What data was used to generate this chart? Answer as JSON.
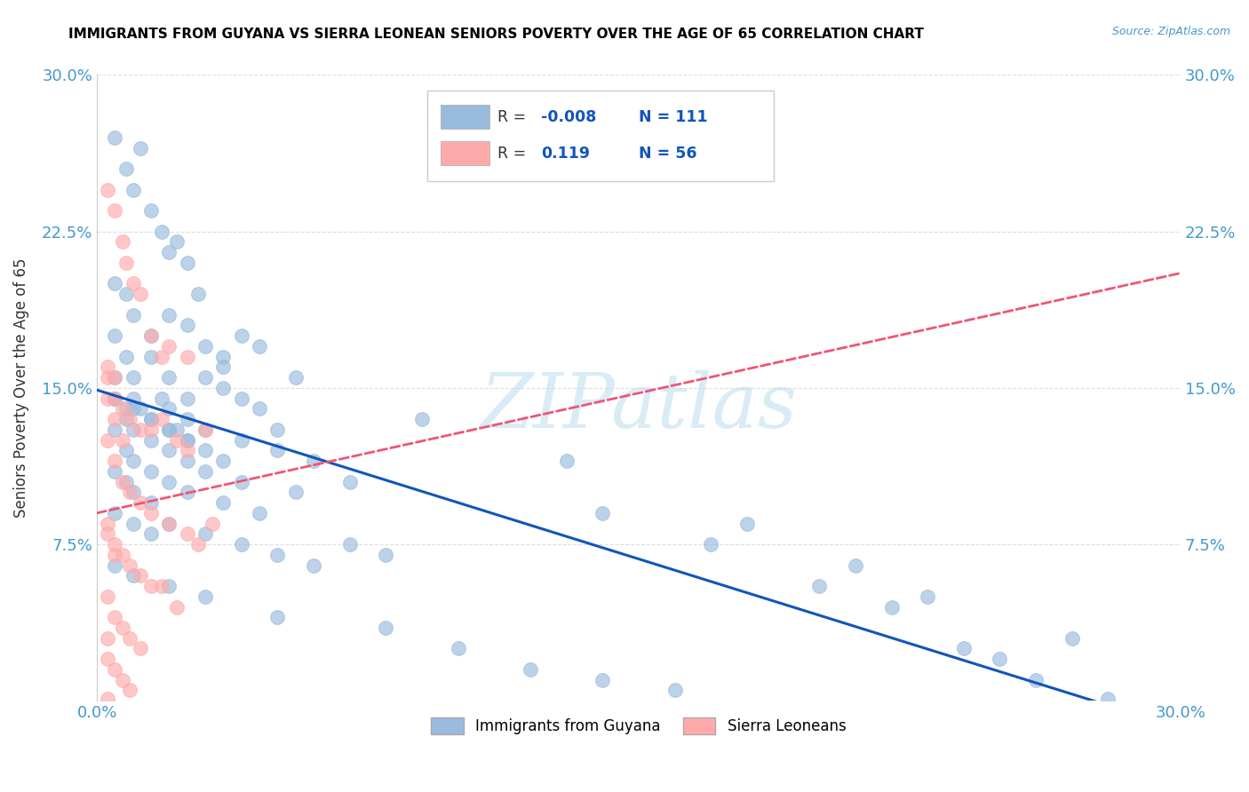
{
  "title": "IMMIGRANTS FROM GUYANA VS SIERRA LEONEAN SENIORS POVERTY OVER THE AGE OF 65 CORRELATION CHART",
  "source": "Source: ZipAtlas.com",
  "ylabel": "Seniors Poverty Over the Age of 65",
  "xlim": [
    0.0,
    0.3
  ],
  "ylim": [
    0.0,
    0.3
  ],
  "xticks": [
    0.0,
    0.075,
    0.15,
    0.225,
    0.3
  ],
  "xticklabels": [
    "0.0%",
    "",
    "",
    "",
    "30.0%"
  ],
  "yticks": [
    0.075,
    0.15,
    0.225,
    0.3
  ],
  "yticklabels": [
    "7.5%",
    "15.0%",
    "22.5%",
    "30.0%"
  ],
  "blue_R": -0.008,
  "blue_N": 111,
  "pink_R": 0.119,
  "pink_N": 56,
  "blue_color": "#99BBDD",
  "pink_color": "#FFAAAA",
  "blue_line_color": "#1155BB",
  "pink_line_color": "#EE5577",
  "blue_line_solid": true,
  "pink_line_dashed": true,
  "watermark": "ZIPatlas",
  "watermark_color": "#BBDDEE",
  "legend_label_blue": "Immigrants from Guyana",
  "legend_label_pink": "Sierra Leoneans",
  "title_fontsize": 11,
  "axis_label_color": "#4499CC",
  "grid_color": "#DDDDDD",
  "blue_scatter_x": [
    0.005,
    0.008,
    0.01,
    0.012,
    0.015,
    0.018,
    0.02,
    0.022,
    0.025,
    0.028,
    0.005,
    0.008,
    0.01,
    0.015,
    0.02,
    0.025,
    0.03,
    0.035,
    0.04,
    0.045,
    0.005,
    0.008,
    0.01,
    0.015,
    0.02,
    0.025,
    0.03,
    0.035,
    0.04,
    0.045,
    0.005,
    0.008,
    0.01,
    0.012,
    0.015,
    0.018,
    0.02,
    0.022,
    0.025,
    0.03,
    0.005,
    0.008,
    0.01,
    0.015,
    0.02,
    0.025,
    0.03,
    0.035,
    0.04,
    0.05,
    0.005,
    0.008,
    0.01,
    0.015,
    0.02,
    0.025,
    0.03,
    0.04,
    0.05,
    0.06,
    0.005,
    0.008,
    0.01,
    0.015,
    0.02,
    0.025,
    0.035,
    0.045,
    0.055,
    0.07,
    0.005,
    0.01,
    0.015,
    0.02,
    0.03,
    0.04,
    0.05,
    0.06,
    0.07,
    0.08,
    0.005,
    0.01,
    0.02,
    0.03,
    0.05,
    0.08,
    0.1,
    0.12,
    0.14,
    0.16,
    0.005,
    0.01,
    0.015,
    0.02,
    0.025,
    0.035,
    0.055,
    0.09,
    0.13,
    0.18,
    0.2,
    0.22,
    0.24,
    0.25,
    0.26,
    0.28,
    0.14,
    0.17,
    0.21,
    0.23,
    0.27
  ],
  "blue_scatter_y": [
    0.27,
    0.255,
    0.245,
    0.265,
    0.235,
    0.225,
    0.215,
    0.22,
    0.21,
    0.195,
    0.2,
    0.195,
    0.185,
    0.175,
    0.185,
    0.18,
    0.17,
    0.165,
    0.175,
    0.17,
    0.175,
    0.165,
    0.155,
    0.165,
    0.155,
    0.145,
    0.155,
    0.15,
    0.145,
    0.14,
    0.155,
    0.14,
    0.145,
    0.14,
    0.135,
    0.145,
    0.14,
    0.13,
    0.135,
    0.13,
    0.145,
    0.135,
    0.13,
    0.125,
    0.13,
    0.125,
    0.12,
    0.115,
    0.125,
    0.13,
    0.13,
    0.12,
    0.115,
    0.11,
    0.12,
    0.115,
    0.11,
    0.105,
    0.12,
    0.115,
    0.11,
    0.105,
    0.1,
    0.095,
    0.105,
    0.1,
    0.095,
    0.09,
    0.1,
    0.105,
    0.09,
    0.085,
    0.08,
    0.085,
    0.08,
    0.075,
    0.07,
    0.065,
    0.075,
    0.07,
    0.065,
    0.06,
    0.055,
    0.05,
    0.04,
    0.035,
    0.025,
    0.015,
    0.01,
    0.005,
    0.145,
    0.14,
    0.135,
    0.13,
    0.125,
    0.16,
    0.155,
    0.135,
    0.115,
    0.085,
    0.055,
    0.045,
    0.025,
    0.02,
    0.01,
    0.001,
    0.09,
    0.075,
    0.065,
    0.05,
    0.03
  ],
  "pink_scatter_x": [
    0.003,
    0.005,
    0.007,
    0.008,
    0.01,
    0.012,
    0.015,
    0.018,
    0.02,
    0.025,
    0.003,
    0.005,
    0.007,
    0.009,
    0.012,
    0.015,
    0.018,
    0.022,
    0.025,
    0.03,
    0.003,
    0.005,
    0.007,
    0.009,
    0.012,
    0.015,
    0.02,
    0.025,
    0.028,
    0.032,
    0.003,
    0.005,
    0.007,
    0.009,
    0.012,
    0.015,
    0.018,
    0.022,
    0.003,
    0.005,
    0.007,
    0.009,
    0.012,
    0.003,
    0.005,
    0.007,
    0.009,
    0.003,
    0.005,
    0.007,
    0.003,
    0.005,
    0.003,
    0.005,
    0.003,
    0.003
  ],
  "pink_scatter_y": [
    0.245,
    0.235,
    0.22,
    0.21,
    0.2,
    0.195,
    0.175,
    0.165,
    0.17,
    0.165,
    0.155,
    0.145,
    0.14,
    0.135,
    0.13,
    0.13,
    0.135,
    0.125,
    0.12,
    0.13,
    0.125,
    0.115,
    0.105,
    0.1,
    0.095,
    0.09,
    0.085,
    0.08,
    0.075,
    0.085,
    0.085,
    0.075,
    0.07,
    0.065,
    0.06,
    0.055,
    0.055,
    0.045,
    0.05,
    0.04,
    0.035,
    0.03,
    0.025,
    0.02,
    0.015,
    0.01,
    0.005,
    0.145,
    0.135,
    0.125,
    0.16,
    0.155,
    0.08,
    0.07,
    0.03,
    0.001
  ]
}
